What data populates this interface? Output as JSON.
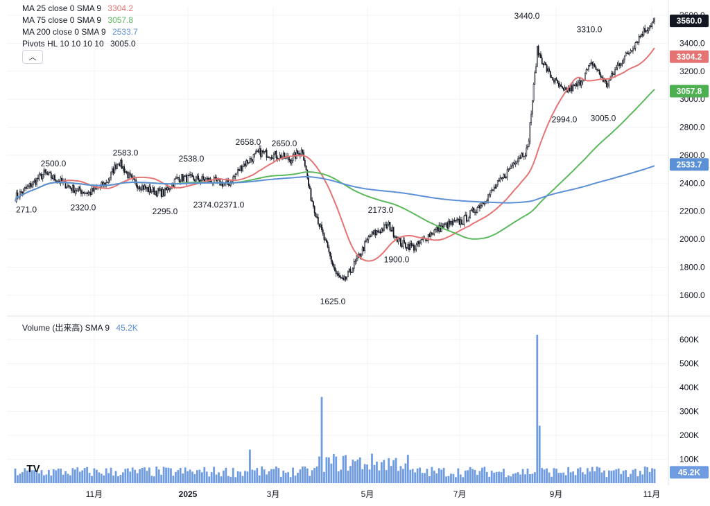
{
  "legend": {
    "rows": [
      {
        "label": "MA 25 close 0 SMA 9",
        "value": "3304.2",
        "color": "#e57373"
      },
      {
        "label": "MA 75 close 0 SMA 9",
        "value": "3057.8",
        "color": "#5cb85c"
      },
      {
        "label": "MA 200 close 0 SMA 9",
        "value": "2533.7",
        "color": "#5b8fd6"
      },
      {
        "label": "Pivots HL 10 10 10 10",
        "value": "3005.0",
        "color": "#131722"
      }
    ],
    "menu_icon": "chevron-up-icon"
  },
  "volume_legend": {
    "label": "Volume (出来高) SMA 9",
    "value": "45.2K",
    "color": "#5b8fd6"
  },
  "logo": {
    "text": "TV",
    "icon": "tradingview-logo"
  },
  "price_axis": {
    "ticks": [
      "3600.0",
      "3400.0",
      "3200.0",
      "3000.0",
      "2800.0",
      "2600.0",
      "2400.0",
      "2200.0",
      "2000.0",
      "1800.0",
      "1600.0"
    ],
    "badges": [
      {
        "label": "3560.0",
        "color": "#131722"
      },
      {
        "label": "3304.2",
        "color": "#e57373"
      },
      {
        "label": "3057.8",
        "color": "#4caf50"
      },
      {
        "label": "2533.7",
        "color": "#5b8fd6"
      }
    ]
  },
  "volume_axis": {
    "ticks": [
      "600K",
      "500K",
      "400K",
      "300K",
      "200K",
      "100K"
    ],
    "badge": "45.2K"
  },
  "time_axis": {
    "labels": [
      "11月",
      "2025",
      "3月",
      "5月",
      "7月",
      "9月",
      "11月"
    ]
  },
  "chart_data": {
    "type": "candlestick",
    "price_range": [
      1500,
      3620
    ],
    "volume_range": [
      0,
      640000
    ],
    "pivot_labels": [
      {
        "text": "271.0",
        "price": 2190
      },
      {
        "text": "2500.0",
        "price": 2520
      },
      {
        "text": "2320.0",
        "price": 2205
      },
      {
        "text": "2583.0",
        "price": 2598
      },
      {
        "text": "2295.0",
        "price": 2178
      },
      {
        "text": "2538.0",
        "price": 2555
      },
      {
        "text": "2374.0",
        "price": 2225
      },
      {
        "text": "2371.0",
        "price": 2225
      },
      {
        "text": "2658.0",
        "price": 2673
      },
      {
        "text": "2650.0",
        "price": 2665
      },
      {
        "text": "2173.0",
        "price": 2188
      },
      {
        "text": "1625.0",
        "price": 1535
      },
      {
        "text": "1900.0",
        "price": 1835
      },
      {
        "text": "3440.0",
        "price": 3575
      },
      {
        "text": "3310.0",
        "price": 3480
      },
      {
        "text": "2994.0",
        "price": 2835
      },
      {
        "text": "3005.0",
        "price": 2845
      }
    ],
    "series": [
      {
        "name": "MA 25",
        "color": "#e57373",
        "last": 3304.2
      },
      {
        "name": "MA 75",
        "color": "#5cb85c",
        "last": 3057.8
      },
      {
        "name": "MA 200",
        "color": "#5b8fd6",
        "last": 2533.7
      }
    ],
    "last_price": 3560.0,
    "last_volume": "45.2K"
  }
}
